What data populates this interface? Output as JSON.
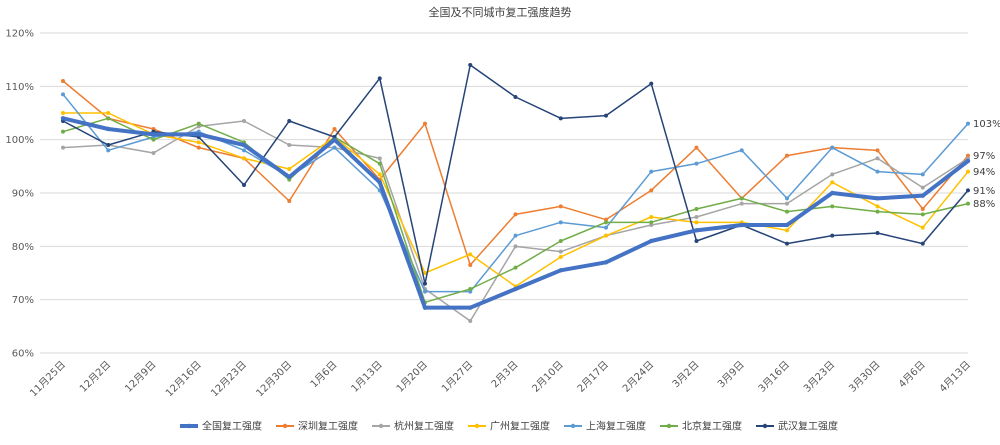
{
  "chart_data": {
    "type": "line",
    "title": "全国及不同城市复工强度趋势",
    "ylim": [
      60,
      120
    ],
    "yticks": [
      60,
      70,
      80,
      90,
      100,
      110,
      120
    ],
    "ytick_suffix": "%",
    "grid": true,
    "legend": "bottom",
    "categories": [
      "11月25日",
      "12月2日",
      "12月9日",
      "12月16日",
      "12月23日",
      "12月30日",
      "1月6日",
      "1月13日",
      "1月20日",
      "1月27日",
      "2月3日",
      "2月10日",
      "2月17日",
      "2月24日",
      "3月2日",
      "3月9日",
      "3月16日",
      "3月23日",
      "3月30日",
      "4月6日",
      "4月13日"
    ],
    "series": [
      {
        "name": "全国复工强度",
        "color": "#4472C4",
        "width": 4,
        "end_label": "",
        "values": [
          104,
          102,
          101,
          101,
          99,
          93,
          100,
          92,
          68.5,
          68.5,
          72,
          75.5,
          77,
          81,
          83,
          84,
          84,
          90,
          89,
          89.5,
          96
        ]
      },
      {
        "name": "深圳复工强度",
        "color": "#ED7D31",
        "width": 1.5,
        "end_label": "97%",
        "values": [
          111,
          104,
          102,
          98.5,
          96.5,
          88.5,
          102,
          92.5,
          103,
          76.5,
          86,
          87.5,
          85,
          90.5,
          98.5,
          89,
          97,
          98.5,
          98,
          87,
          97
        ]
      },
      {
        "name": "杭州复工强度",
        "color": "#A5A5A5",
        "width": 1.5,
        "end_label": "",
        "values": [
          98.5,
          99,
          97.5,
          102.5,
          103.5,
          99,
          98.5,
          96.5,
          72,
          66,
          80,
          79,
          82,
          84,
          85.5,
          88,
          88,
          93.5,
          96.5,
          91,
          96.5
        ]
      },
      {
        "name": "广州复工强度",
        "color": "#FFC000",
        "width": 1.5,
        "end_label": "94%",
        "values": [
          105,
          105,
          101,
          99.5,
          96.5,
          94.5,
          100.5,
          93.5,
          75,
          78.5,
          72.5,
          78,
          82,
          85.5,
          84.5,
          84.5,
          83,
          92,
          87.5,
          83.5,
          94
        ]
      },
      {
        "name": "上海复工强度",
        "color": "#5B9BD5",
        "width": 1.5,
        "end_label": "103%",
        "values": [
          108.5,
          98,
          100.5,
          101.5,
          98,
          93,
          98.5,
          90.5,
          71.5,
          71.5,
          82,
          84.5,
          83.5,
          94,
          95.5,
          98,
          89,
          98.5,
          94,
          93.5,
          103
        ]
      },
      {
        "name": "北京复工强度",
        "color": "#70AD47",
        "width": 1.5,
        "end_label": "88%",
        "values": [
          101.5,
          104,
          100,
          103,
          99.5,
          92.5,
          100.5,
          95.5,
          69.5,
          72,
          76,
          81,
          84.5,
          84.5,
          87,
          89,
          86.5,
          87.5,
          86.5,
          86,
          88
        ]
      },
      {
        "name": "武汉复工强度",
        "color": "#264478",
        "width": 1.5,
        "end_label": "91%",
        "values": [
          103.5,
          99,
          101.5,
          100.5,
          91.5,
          103.5,
          100.5,
          111.5,
          73,
          114,
          108,
          104,
          104.5,
          110.5,
          81,
          84,
          80.5,
          82,
          82.5,
          80.5,
          90.5
        ]
      }
    ]
  }
}
